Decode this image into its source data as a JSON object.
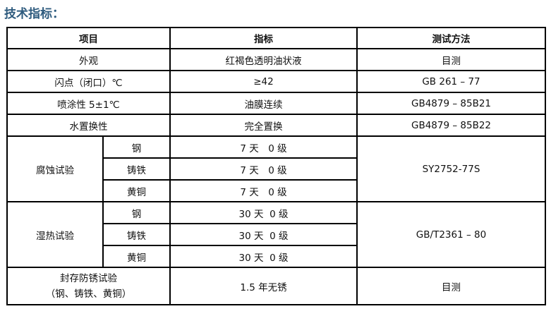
{
  "title": "技术指标：",
  "headers": [
    "项目",
    "指标",
    "测试方法"
  ],
  "rows": [
    {
      "item": "外观",
      "spec": "红褐色透明油状液",
      "method": "目测"
    },
    {
      "item": "闪点（闭口）℃",
      "spec": "≥42",
      "method": "GB 261 – 77"
    },
    {
      "item": "喷涂性 5±1℃",
      "spec": "油膜连续",
      "method": "GB4879 – 85B21"
    },
    {
      "item": "水置换性",
      "spec": "完全置换",
      "method": "GB4879 – 85B22"
    }
  ],
  "groups": [
    {
      "name": "腐蚀试验",
      "method": "SY2752-77S",
      "subs": [
        {
          "metal": "钢",
          "spec": "7 天　0 级"
        },
        {
          "metal": "铸铁",
          "spec": "7 天　0 级"
        },
        {
          "metal": "黄铜",
          "spec": "7 天　0 级"
        }
      ]
    },
    {
      "name": "湿热试验",
      "method": "GB/T2361 – 80",
      "subs": [
        {
          "metal": "钢",
          "spec": "30 天  0 级"
        },
        {
          "metal": "铸铁",
          "spec": "30 天  0 级"
        },
        {
          "metal": "黄铜",
          "spec": "30 天  0 级"
        }
      ]
    }
  ],
  "last": {
    "item_line1": "封存防锈试验",
    "item_line2": "（钢、铸铁、黄铜）",
    "spec": "1.5 年无锈",
    "method": "目测"
  }
}
